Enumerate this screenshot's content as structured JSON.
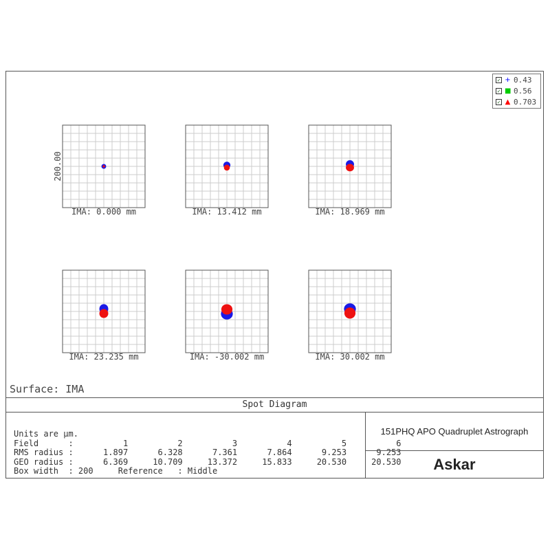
{
  "chart_data": {
    "type": "scatter",
    "title": "Spot Diagram",
    "surface_label": "Surface: IMA",
    "scale_label": "200.00",
    "legend": [
      {
        "label": "0.43",
        "marker": "+",
        "color": "#0000ff",
        "checked": true
      },
      {
        "label": "0.56",
        "marker": "■",
        "color": "#00cc00",
        "checked": true
      },
      {
        "label": "0.703",
        "marker": "▲",
        "color": "#ff0000",
        "checked": true
      }
    ],
    "fields": [
      {
        "label": "IMA: 0.000 mm",
        "rms_radius": 1.897,
        "geo_radius": 6.369,
        "spots": [
          {
            "series": "0.43",
            "cx": 0,
            "cy": 0,
            "rx": 6.4,
            "ry": 6.4
          },
          {
            "series": "0.703",
            "cx": 0,
            "cy": 0,
            "rx": 3.2,
            "ry": 3.2
          }
        ]
      },
      {
        "label": "IMA: 13.412 mm",
        "rms_radius": 6.328,
        "geo_radius": 10.709,
        "spots": [
          {
            "series": "0.43",
            "cx": 0,
            "cy": -3,
            "rx": 9.5,
            "ry": 9.5
          },
          {
            "series": "0.703",
            "cx": 0,
            "cy": 3,
            "rx": 8,
            "ry": 8
          }
        ]
      },
      {
        "label": "IMA: 18.969 mm",
        "rms_radius": 7.361,
        "geo_radius": 13.372,
        "spots": [
          {
            "series": "0.43",
            "cx": 0,
            "cy": -5,
            "rx": 11,
            "ry": 11
          },
          {
            "series": "0.703",
            "cx": 0,
            "cy": 3,
            "rx": 11,
            "ry": 10
          }
        ]
      },
      {
        "label": "IMA: 23.235 mm",
        "rms_radius": 7.864,
        "geo_radius": 15.833,
        "spots": [
          {
            "series": "0.43",
            "cx": 0,
            "cy": -6,
            "rx": 12,
            "ry": 13
          },
          {
            "series": "0.703",
            "cx": 0,
            "cy": 5,
            "rx": 12,
            "ry": 12
          }
        ]
      },
      {
        "label": "IMA: -30.002 mm",
        "rms_radius": 9.253,
        "geo_radius": 20.53,
        "spots": [
          {
            "series": "0.43",
            "cx": 0,
            "cy": 6,
            "rx": 16,
            "ry": 15
          },
          {
            "series": "0.703",
            "cx": 0,
            "cy": -5,
            "rx": 15,
            "ry": 14
          }
        ]
      },
      {
        "label": "IMA: 30.002 mm",
        "rms_radius": 9.253,
        "geo_radius": 20.53,
        "spots": [
          {
            "series": "0.43",
            "cx": 0,
            "cy": -6,
            "rx": 16,
            "ry": 15
          },
          {
            "series": "0.703",
            "cx": 0,
            "cy": 4,
            "rx": 15,
            "ry": 15
          }
        ]
      }
    ],
    "box_width": 200,
    "grid": true
  },
  "info": {
    "units": "Units are µm.",
    "field_row": "Field      :          1          2          3          4          5          6",
    "rms_row": "RMS radius :      1.897      6.328      7.361      7.864      9.253      9.253",
    "geo_row": "GEO radius :      6.369     10.709     13.372     15.833     20.530     20.530",
    "box_row": "Box width  : 200     Reference   : Middle"
  },
  "lens_name": "151PHQ APO Quadruplet Astrograph",
  "brand": "Askar",
  "colors": {
    "series_043": "#1a1ae6",
    "series_056": "#00cc00",
    "series_0703": "#ee1111",
    "grid": "#cccccc",
    "frame": "#555555"
  }
}
